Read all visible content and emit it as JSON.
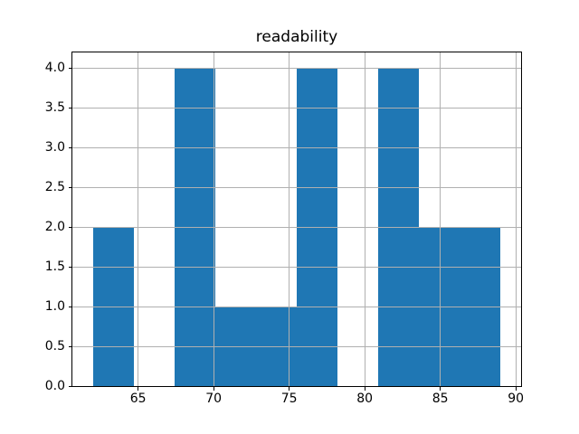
{
  "chart_data": {
    "type": "bar",
    "subtype": "histogram",
    "title": "readability",
    "xlabel": "",
    "ylabel": "",
    "bin_edges": [
      62.0,
      64.7,
      67.4,
      70.1,
      72.8,
      75.5,
      78.2,
      80.9,
      83.6,
      86.3,
      89.0
    ],
    "counts": [
      2,
      0,
      4,
      1,
      1,
      4,
      0,
      4,
      2,
      2
    ],
    "xlim": [
      60.65,
      90.35
    ],
    "ylim": [
      0,
      4.2
    ],
    "x_ticks": [
      {
        "value": 65,
        "label": "65"
      },
      {
        "value": 70,
        "label": "70"
      },
      {
        "value": 75,
        "label": "75"
      },
      {
        "value": 80,
        "label": "80"
      },
      {
        "value": 85,
        "label": "85"
      },
      {
        "value": 90,
        "label": "90"
      }
    ],
    "y_ticks": [
      {
        "value": 0.0,
        "label": "0.0"
      },
      {
        "value": 0.5,
        "label": "0.5"
      },
      {
        "value": 1.0,
        "label": "1.0"
      },
      {
        "value": 1.5,
        "label": "1.5"
      },
      {
        "value": 2.0,
        "label": "2.0"
      },
      {
        "value": 2.5,
        "label": "2.5"
      },
      {
        "value": 3.0,
        "label": "3.0"
      },
      {
        "value": 3.5,
        "label": "3.5"
      },
      {
        "value": 4.0,
        "label": "4.0"
      }
    ],
    "grid": true,
    "legend": null,
    "bar_color": "#1f77b4",
    "grid_color": "#b0b0b0",
    "axis_color": "#000000",
    "background_color": "#ffffff"
  }
}
